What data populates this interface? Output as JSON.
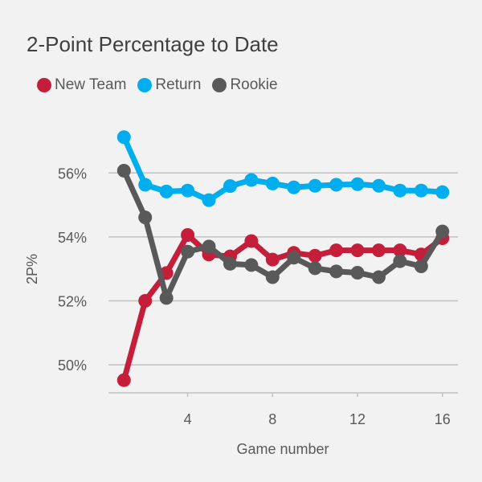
{
  "chart_data": {
    "type": "line",
    "title": "2-Point Percentage to Date",
    "xlabel": "Game number",
    "ylabel": "2P%",
    "xlim": [
      0.3,
      16.7
    ],
    "ylim": [
      49.1,
      57.5
    ],
    "xticks": [
      4,
      8,
      12,
      16
    ],
    "yticks": [
      50,
      52,
      54,
      56
    ],
    "ytick_labels": [
      "50%",
      "52%",
      "54%",
      "56%"
    ],
    "grid": "horizontal",
    "legend": "top-left",
    "x": [
      1,
      2,
      3,
      4,
      5,
      6,
      7,
      8,
      9,
      10,
      11,
      12,
      13,
      14,
      15,
      16
    ],
    "series": [
      {
        "name": "New Team",
        "color": "#c41e3a",
        "values": [
          49.52,
          52.0,
          52.87,
          54.06,
          53.45,
          53.39,
          53.87,
          53.29,
          53.5,
          53.41,
          53.58,
          53.58,
          53.58,
          53.58,
          53.45,
          53.96
        ]
      },
      {
        "name": "Return",
        "color": "#00aeef",
        "values": [
          57.12,
          55.63,
          55.42,
          55.45,
          55.15,
          55.59,
          55.78,
          55.67,
          55.55,
          55.6,
          55.63,
          55.65,
          55.6,
          55.45,
          55.45,
          55.4
        ]
      },
      {
        "name": "Rookie",
        "color": "#595959",
        "values": [
          56.07,
          54.61,
          52.09,
          53.54,
          53.7,
          53.16,
          53.12,
          52.74,
          53.35,
          53.02,
          52.92,
          52.88,
          52.74,
          53.24,
          53.08,
          54.17
        ]
      }
    ]
  }
}
